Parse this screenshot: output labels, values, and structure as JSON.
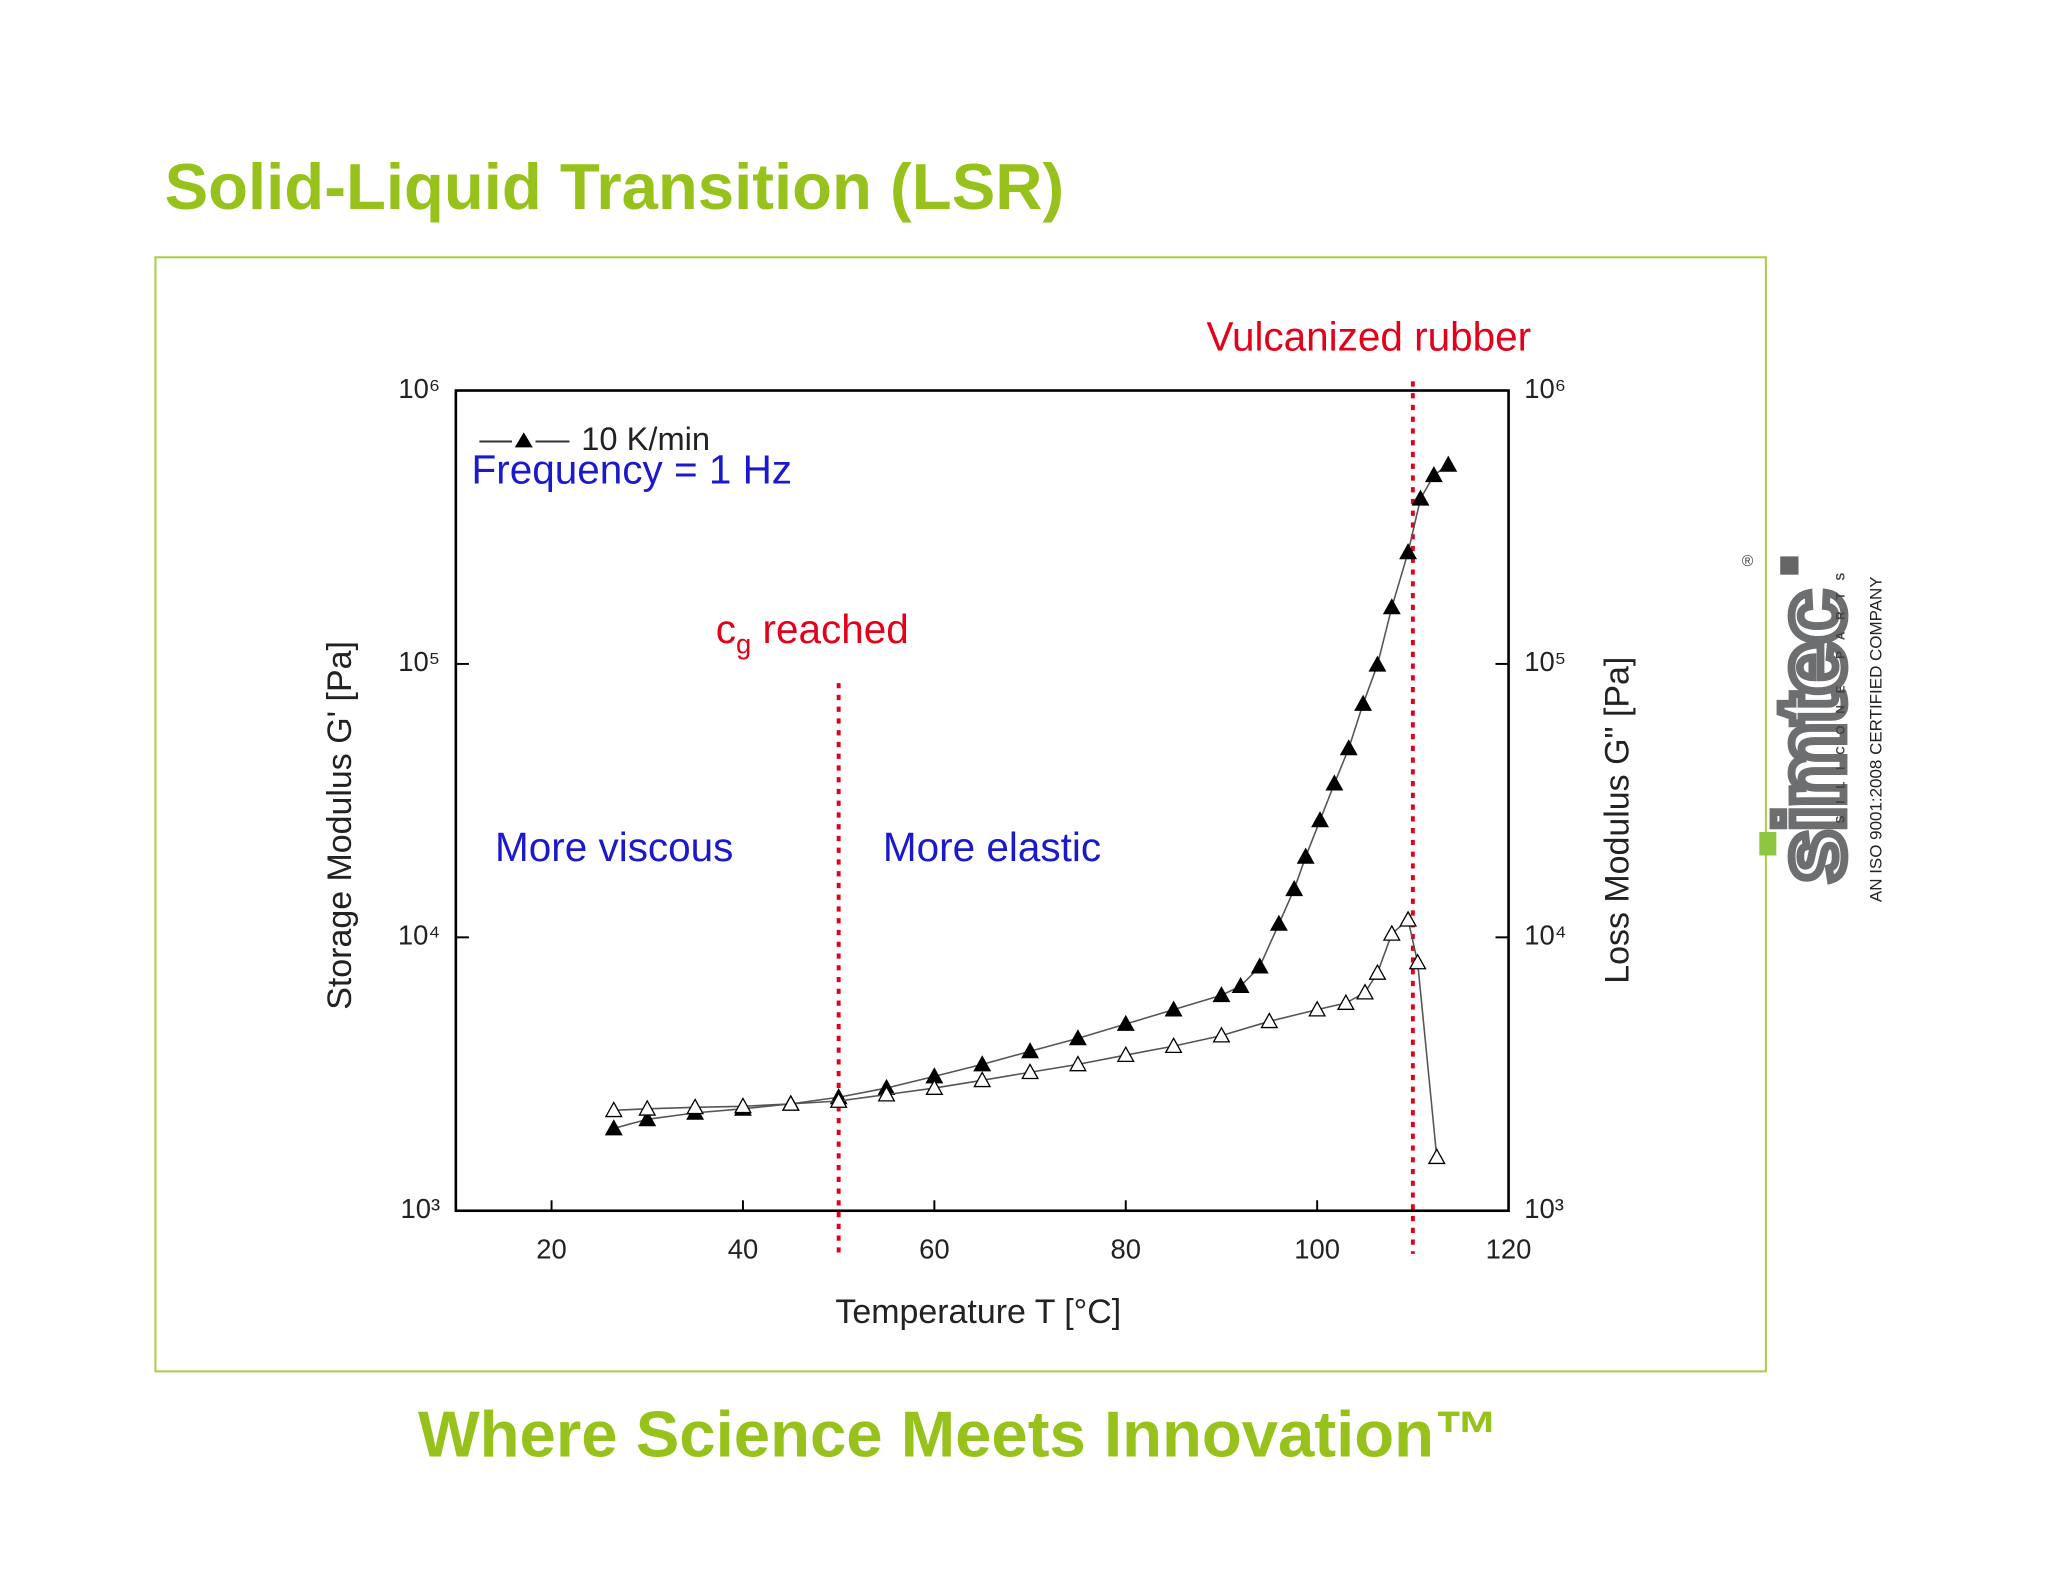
{
  "page": {
    "title": "Solid-Liquid Transition (LSR)",
    "footer": "Where Science Meets Innovation™",
    "logo": {
      "name": "simtec",
      "tagline": "SILICONE PARTS",
      "certification": "AN ISO 9001:2008 CERTIFIED COMPANY",
      "registered": "®"
    }
  },
  "chart_data": {
    "type": "line",
    "x_label": "Temperature T [°C]",
    "y_label": "Storage Modulus G' [Pa]",
    "y2_label": "Loss Modulus G\" [Pa]",
    "log_y": true,
    "xlim": [
      10,
      120
    ],
    "xticks": [
      20,
      40,
      60,
      80,
      100,
      120
    ],
    "ylim": [
      1000,
      1000000
    ],
    "yticks": [
      {
        "value": 1000,
        "label": "10³"
      },
      {
        "value": 10000,
        "label": "10⁴"
      },
      {
        "value": 100000,
        "label": "10⁵"
      },
      {
        "value": 1000000,
        "label": "10⁶"
      }
    ],
    "y2lim": [
      1000,
      1000000
    ],
    "y2ticks": [
      {
        "value": 1000,
        "label": "10³"
      },
      {
        "value": 10000,
        "label": "10⁴"
      },
      {
        "value": 100000,
        "label": "10⁵"
      },
      {
        "value": 1000000,
        "label": "10⁶"
      }
    ],
    "legend": "top-left",
    "series": [
      {
        "name": "10 K/min",
        "color": "#000000",
        "marker": "filled-triangle",
        "x": [
          26.5,
          30,
          35,
          40,
          45,
          50,
          55,
          60,
          65,
          70,
          75,
          80,
          85,
          90,
          92,
          94,
          96,
          97.6,
          98.8,
          100.3,
          101.8,
          103.3,
          104.8,
          106.3,
          107.8,
          109.5,
          110.8,
          112.2,
          113.7
        ],
        "values": [
          2000,
          2160,
          2280,
          2360,
          2460,
          2600,
          2810,
          3100,
          3430,
          3830,
          4270,
          4820,
          5440,
          6140,
          6630,
          7820,
          11200,
          15000,
          19700,
          26800,
          36500,
          49100,
          71400,
          99300,
          161000,
          256000,
          402000,
          490000,
          535000
        ]
      },
      {
        "color": "#000000",
        "marker": "open-triangle",
        "axis": "y2",
        "x": [
          26.5,
          30,
          35,
          40,
          45,
          50,
          55,
          60,
          65,
          70,
          75,
          80,
          85,
          90,
          95,
          100,
          103,
          105,
          106.3,
          107.8,
          109.5,
          110.5,
          112.5
        ],
        "values": [
          2330,
          2360,
          2390,
          2410,
          2460,
          2520,
          2660,
          2810,
          3000,
          3210,
          3430,
          3710,
          4000,
          4370,
          4930,
          5440,
          5750,
          6280,
          7410,
          10300,
          11600,
          8090,
          1570
        ]
      }
    ],
    "vlines": [
      {
        "x": 50,
        "color": "#e3001b"
      },
      {
        "x": 110,
        "color": "#e3001b"
      }
    ],
    "annotations": {
      "vulcanized": "Vulcanized rubber",
      "cg": {
        "text": "c",
        "subscript": "g",
        "suffix": " reached"
      },
      "frequency": "Frequency = 1 Hz",
      "viscous": "More viscous",
      "elastic": "More elastic"
    }
  }
}
